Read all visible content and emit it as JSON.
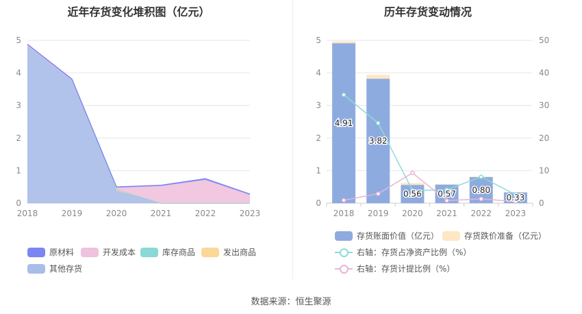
{
  "left_title": "近年存货变化堆积图（亿元）",
  "right_title": "历年存货变动情况",
  "source": "数据来源：恒生聚源",
  "chart_data": [
    {
      "type": "area",
      "stacked": true,
      "title": "近年存货变化堆积图（亿元）",
      "x": [
        "2018",
        "2019",
        "2020",
        "2021",
        "2022",
        "2023"
      ],
      "ylim": [
        0,
        5
      ],
      "yticks": [
        "0",
        "1",
        "2",
        "3",
        "4",
        "5"
      ],
      "series": [
        {
          "name": "原材料",
          "color": "#7b86f4",
          "values": [
            0.02,
            0.02,
            0.02,
            0.02,
            0.03,
            0.02
          ]
        },
        {
          "name": "开发成本",
          "color": "#efc2dd",
          "values": [
            0,
            0,
            0.06,
            0.53,
            0.72,
            0.26
          ]
        },
        {
          "name": "库存商品",
          "color": "#8ad9d6",
          "values": [
            0,
            0,
            0,
            0,
            0,
            0
          ]
        },
        {
          "name": "发出商品",
          "color": "#fbd798",
          "values": [
            0,
            0,
            0.04,
            0,
            0,
            0
          ]
        },
        {
          "name": "其他存货",
          "color": "#a8bde8",
          "values": [
            4.86,
            3.79,
            0.38,
            0,
            0,
            0
          ]
        }
      ],
      "legend_position": "bottom"
    },
    {
      "type": "bar",
      "title": "历年存货变动情况",
      "categories": [
        "2018",
        "2019",
        "2020",
        "2021",
        "2022",
        "2023"
      ],
      "ylim_left": [
        0,
        5
      ],
      "ylim_right": [
        0,
        50
      ],
      "yticks_left": [
        "0",
        "1",
        "2",
        "3",
        "4",
        "5"
      ],
      "yticks_right": [
        "0",
        "10",
        "20",
        "30",
        "40",
        "50"
      ],
      "bar_series": [
        {
          "name": "存货账面价值（亿元）",
          "color": "#8eabdf",
          "values": [
            4.91,
            3.82,
            0.56,
            0.57,
            0.8,
            0.33
          ],
          "labels": [
            "4.91",
            "3.82",
            "0.56",
            "0.57",
            "0.80",
            "0.33"
          ]
        },
        {
          "name": "存货跌价准备（亿元）",
          "color": "#fde7c4",
          "values": [
            0.06,
            0.12,
            0.06,
            0.01,
            0.02,
            0.01
          ]
        }
      ],
      "line_series": [
        {
          "name": "右轴：存货占净资产比例（%）",
          "color": "#8cdcd8",
          "values": [
            33.3,
            24.6,
            3.9,
            4.1,
            8.1,
            2.6
          ]
        },
        {
          "name": "右轴：存货计提比例（%）",
          "color": "#e7b3d9",
          "values": [
            0.9,
            2.9,
            9.3,
            0.8,
            1.3,
            0.5
          ]
        }
      ],
      "legend_position": "bottom"
    }
  ]
}
